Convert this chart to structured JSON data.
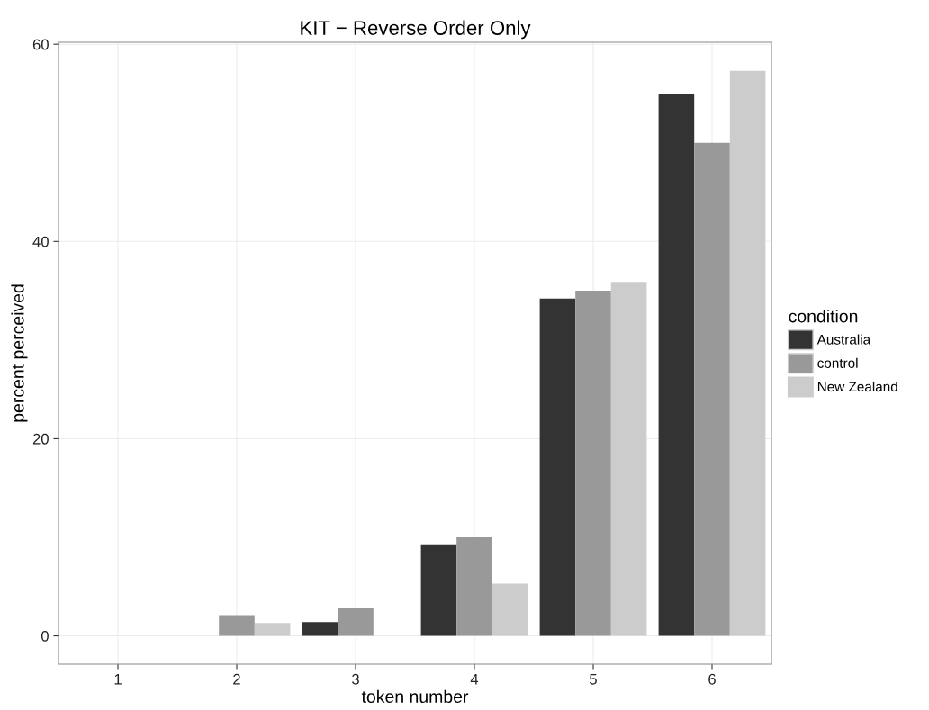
{
  "chart_data": {
    "type": "bar",
    "title": "KIT − Reverse Order Only",
    "xlabel": "token number",
    "ylabel": "percent perceived",
    "legend_title": "condition",
    "categories": [
      "1",
      "2",
      "3",
      "4",
      "5",
      "6"
    ],
    "series": [
      {
        "name": "Australia",
        "color": "#333333",
        "values": [
          0,
          0,
          1.4,
          9.2,
          34.2,
          55.0
        ]
      },
      {
        "name": "control",
        "color": "#999999",
        "values": [
          0,
          2.1,
          2.8,
          10.0,
          35.0,
          50.0
        ]
      },
      {
        "name": "New Zealand",
        "color": "#cccccc",
        "values": [
          0,
          1.3,
          0,
          5.3,
          35.9,
          57.3
        ]
      }
    ],
    "ylim": [
      -2.87,
      60.2
    ],
    "yticks": [
      0,
      20,
      40,
      60
    ],
    "grid": true,
    "legend": "right"
  }
}
